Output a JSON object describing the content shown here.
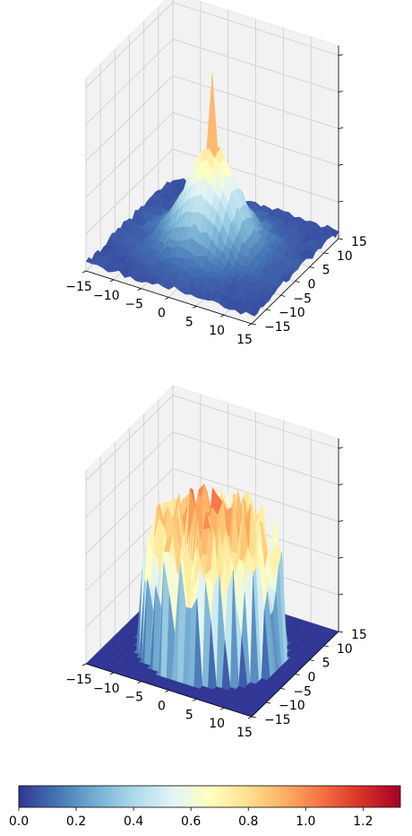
{
  "chart_data": [
    {
      "type": "surface",
      "title": "",
      "x_ticks": [
        "−15",
        "−10",
        "−5",
        "0",
        "5",
        "10",
        "15"
      ],
      "y_ticks": [
        "−15",
        "−10",
        "−5",
        "0",
        "5",
        "10",
        "15"
      ],
      "xlim": [
        -15,
        15
      ],
      "ylim": [
        -15,
        15
      ],
      "zlim": [
        0,
        1.33
      ],
      "z_tick_labels_shown": false,
      "colormap": "RdYlBu_r",
      "description": "single central peak decaying outward; base ~0.05, peak ~1.3 at center"
    },
    {
      "type": "surface",
      "title": "",
      "x_ticks": [
        "−15",
        "−10",
        "−5",
        "0",
        "5",
        "10",
        "15"
      ],
      "y_ticks": [
        "−15",
        "−10",
        "−5",
        "0",
        "5",
        "10",
        "15"
      ],
      "xlim": [
        -15,
        15
      ],
      "ylim": [
        -15,
        15
      ],
      "zlim": [
        0,
        1.33
      ],
      "z_tick_labels_shown": false,
      "colormap": "RdYlBu_r",
      "description": "noisy dome inside radius ~11, spiky values 0.3–1.3; zero outside"
    }
  ],
  "colorbar": {
    "ticks": [
      "0.0",
      "0.2",
      "0.4",
      "0.6",
      "0.8",
      "1.0",
      "1.2"
    ],
    "tick_values": [
      0.0,
      0.2,
      0.4,
      0.6,
      0.8,
      1.0,
      1.2
    ],
    "vmin": 0.0,
    "vmax": 1.33,
    "colors": [
      "#313695",
      "#4575b4",
      "#74add1",
      "#abd9e9",
      "#e0f3f8",
      "#ffffbf",
      "#fee090",
      "#fdae61",
      "#f46d43",
      "#d73027",
      "#a50026"
    ]
  }
}
